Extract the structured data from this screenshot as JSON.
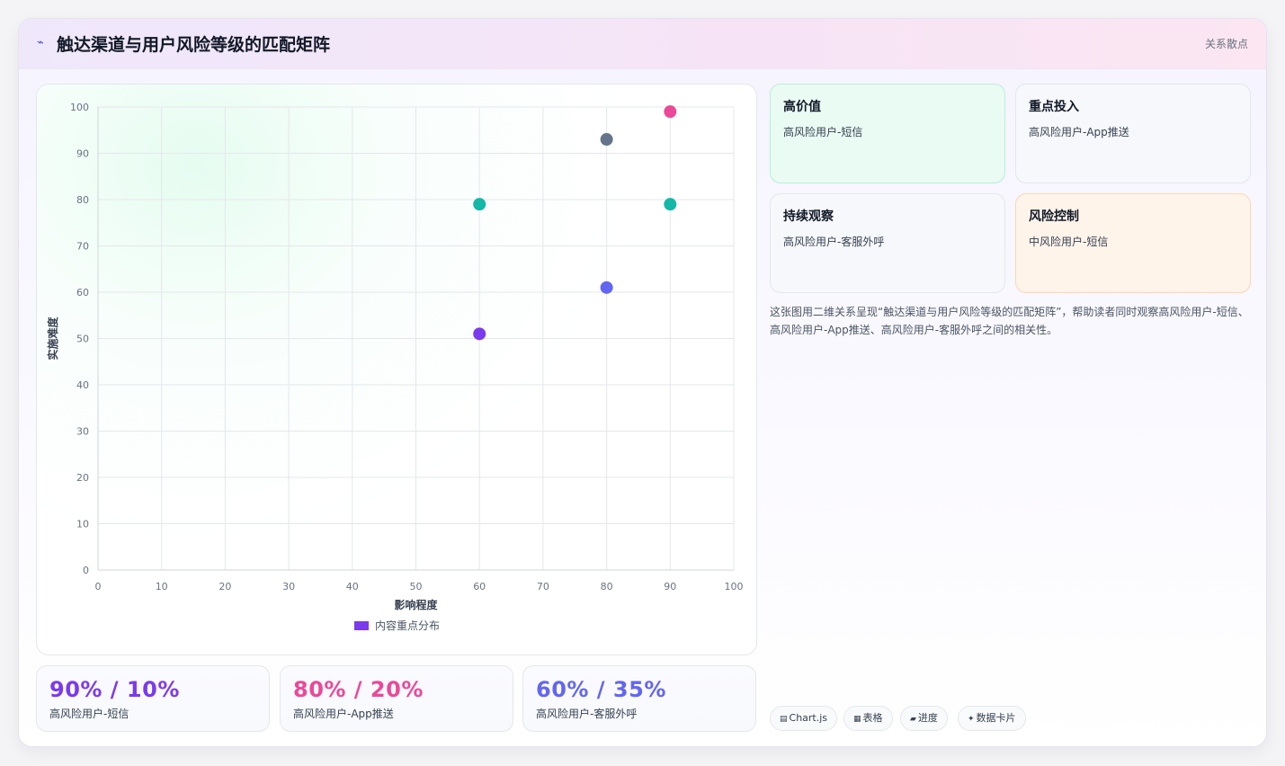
{
  "header": {
    "title": "触达渠道与用户风险等级的匹配矩阵",
    "tag": "关系散点"
  },
  "chart_data": {
    "type": "scatter",
    "xlabel": "影响程度",
    "ylabel": "实施难度",
    "xlim": [
      0,
      100
    ],
    "ylim": [
      0,
      100
    ],
    "x_ticks": [
      0,
      10,
      20,
      30,
      40,
      50,
      60,
      70,
      80,
      90,
      100
    ],
    "y_ticks": [
      0,
      10,
      20,
      30,
      40,
      50,
      60,
      70,
      80,
      90,
      100
    ],
    "grid": true,
    "legend": {
      "label": "内容重点分布",
      "color": "#7c3aed",
      "placement": "bottom"
    },
    "points": [
      {
        "x": 90,
        "y": 99,
        "color": "#ec4899"
      },
      {
        "x": 80,
        "y": 93,
        "color": "#64748b"
      },
      {
        "x": 60,
        "y": 79,
        "color": "#14b8a6"
      },
      {
        "x": 90,
        "y": 79,
        "color": "#14b8a6"
      },
      {
        "x": 80,
        "y": 61,
        "color": "#6366f1"
      },
      {
        "x": 60,
        "y": 51,
        "color": "#7c3aed"
      }
    ]
  },
  "quadrants": [
    {
      "title": "高价值",
      "text": "高风险用户-短信"
    },
    {
      "title": "重点投入",
      "text": "高风险用户-App推送"
    },
    {
      "title": "持续观察",
      "text": "高风险用户-客服外呼"
    },
    {
      "title": "风险控制",
      "text": "中风险用户-短信"
    }
  ],
  "description": "这张图用二维关系呈现“触达渠道与用户风险等级的匹配矩阵”，帮助读者同时观察高风险用户-短信、高风险用户-App推送、高风险用户-客服外呼之间的相关性。",
  "stats": [
    {
      "value": "90% / 10%",
      "label": "高风险用户-短信",
      "color": "#7c3aed"
    },
    {
      "value": "80% / 20%",
      "label": "高风险用户-App推送",
      "color": "#ec4899"
    },
    {
      "value": "60% / 35%",
      "label": "高风险用户-客服外呼",
      "color": "#6366f1"
    }
  ],
  "tools": [
    {
      "icon": "▤",
      "label": "Chart.js"
    },
    {
      "icon": "▦",
      "label": "表格"
    },
    {
      "icon": "▰",
      "label": "进度"
    },
    {
      "icon": "✦",
      "label": "数据卡片"
    }
  ]
}
